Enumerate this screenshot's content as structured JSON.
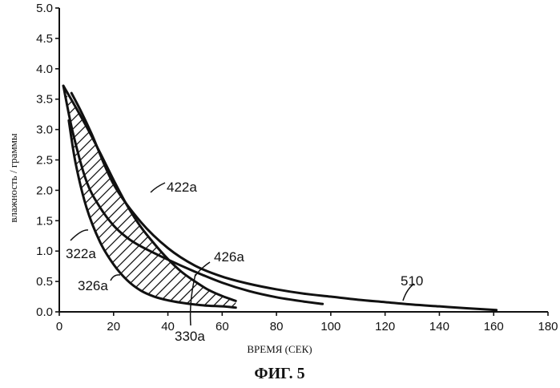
{
  "chart_data": {
    "type": "line",
    "title": "",
    "xlabel": "ВРЕМЯ (СЕК)",
    "ylabel": "влажность / граммы",
    "xlim": [
      0,
      180
    ],
    "ylim": [
      0,
      5.0
    ],
    "x_ticks": [
      "0",
      "20",
      "40",
      "60",
      "80",
      "100",
      "120",
      "140",
      "160",
      "180"
    ],
    "y_ticks": [
      "0.0",
      "0.5",
      "1.0",
      "1.5",
      "2.0",
      "2.5",
      "3.0",
      "3.5",
      "4.0",
      "4.5",
      "5.0"
    ],
    "grid": false,
    "series": [
      {
        "name": "422a",
        "x": [
          1.5,
          5,
          10,
          15,
          20,
          25,
          30,
          35,
          40,
          45,
          50,
          55,
          60,
          65
        ],
        "y": [
          3.72,
          3.45,
          3.05,
          2.62,
          2.17,
          1.75,
          1.4,
          1.12,
          0.87,
          0.66,
          0.5,
          0.36,
          0.26,
          0.18
        ]
      },
      {
        "name": "322a",
        "x": [
          1.5,
          5,
          10,
          15,
          20,
          25,
          30,
          40,
          50,
          60,
          70,
          80,
          90,
          97
        ],
        "y": [
          3.72,
          2.95,
          2.15,
          1.72,
          1.42,
          1.22,
          1.08,
          0.86,
          0.66,
          0.48,
          0.34,
          0.24,
          0.17,
          0.13
        ]
      },
      {
        "name": "326a",
        "x": [
          3.5,
          6,
          10,
          15,
          20,
          25,
          30,
          35,
          40,
          45,
          50,
          55,
          60,
          65
        ],
        "y": [
          3.15,
          2.45,
          1.72,
          1.15,
          0.78,
          0.52,
          0.35,
          0.25,
          0.19,
          0.15,
          0.12,
          0.1,
          0.09,
          0.07
        ]
      },
      {
        "name": "510",
        "x": [
          4.5,
          8,
          12,
          20,
          30,
          40,
          50,
          60,
          70,
          80,
          90,
          100,
          110,
          120,
          130,
          140,
          150,
          161
        ],
        "y": [
          3.6,
          3.3,
          2.92,
          2.1,
          1.48,
          1.05,
          0.76,
          0.58,
          0.46,
          0.37,
          0.3,
          0.25,
          0.2,
          0.16,
          0.12,
          0.09,
          0.06,
          0.03
        ]
      }
    ],
    "annotations": [
      {
        "text": "422a",
        "x": 48,
        "y": 2.15
      },
      {
        "text": "322a",
        "x": 11,
        "y": 1.0
      },
      {
        "text": "326a",
        "x": 20,
        "y": 0.45
      },
      {
        "text": "426a",
        "x": 71,
        "y": 0.85
      },
      {
        "text": "510",
        "x": 129,
        "y": 0.55
      },
      {
        "text": "330a",
        "x": 49,
        "y": -0.6
      }
    ],
    "hatched_region": "between 422a and 326a",
    "figure_label": "ФИГ. 5"
  }
}
